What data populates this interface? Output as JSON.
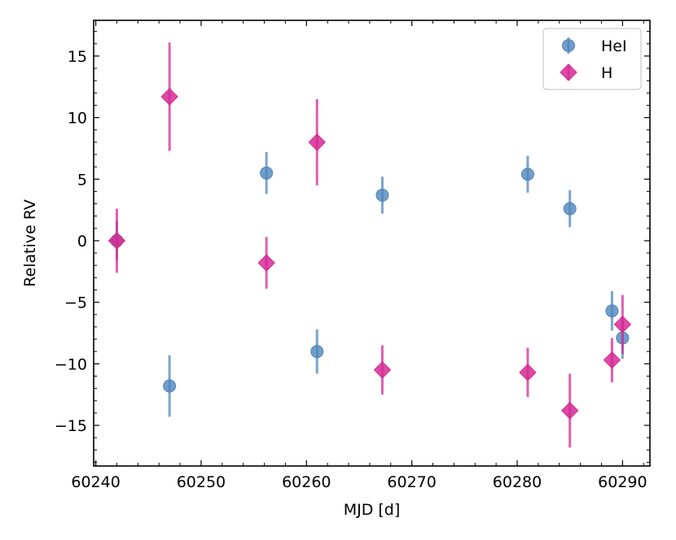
{
  "chart_data": {
    "type": "scatter",
    "xlabel": "MJD [d]",
    "ylabel": "Relative RV",
    "xlim": [
      60239.8,
      60292.6
    ],
    "ylim": [
      -18.3,
      17.9
    ],
    "xticks": [
      60240,
      60250,
      60260,
      60270,
      60280,
      60290
    ],
    "yticks": [
      -15,
      -10,
      -5,
      0,
      5,
      10,
      15
    ],
    "xtick_labels": [
      "60240",
      "60250",
      "60260",
      "60270",
      "60280",
      "60290"
    ],
    "ytick_labels": [
      "−15",
      "−10",
      "−5",
      "0",
      "5",
      "10",
      "15"
    ],
    "legend_position": "top-right",
    "grid": false,
    "series": [
      {
        "name": "HeI",
        "marker": "circle",
        "color": "#4f86bb",
        "x": [
          60242,
          60247,
          60256.2,
          60261,
          60267.2,
          60281,
          60285,
          60289,
          60290
        ],
        "y": [
          0.0,
          -11.8,
          5.5,
          -9.0,
          3.7,
          5.4,
          2.6,
          -5.7,
          -7.9
        ],
        "yerr": [
          1.6,
          2.5,
          1.7,
          1.8,
          1.5,
          1.5,
          1.5,
          1.6,
          1.7
        ]
      },
      {
        "name": "H",
        "marker": "diamond",
        "color": "#d62a93",
        "x": [
          60242,
          60247,
          60256.2,
          60261,
          60267.2,
          60281,
          60285,
          60289,
          60290
        ],
        "y": [
          0.0,
          11.7,
          -1.8,
          8.0,
          -10.5,
          -10.7,
          -13.8,
          -9.7,
          -6.8
        ],
        "yerr": [
          2.6,
          4.4,
          2.1,
          3.5,
          2.0,
          2.0,
          3.0,
          1.8,
          2.4
        ]
      }
    ]
  }
}
